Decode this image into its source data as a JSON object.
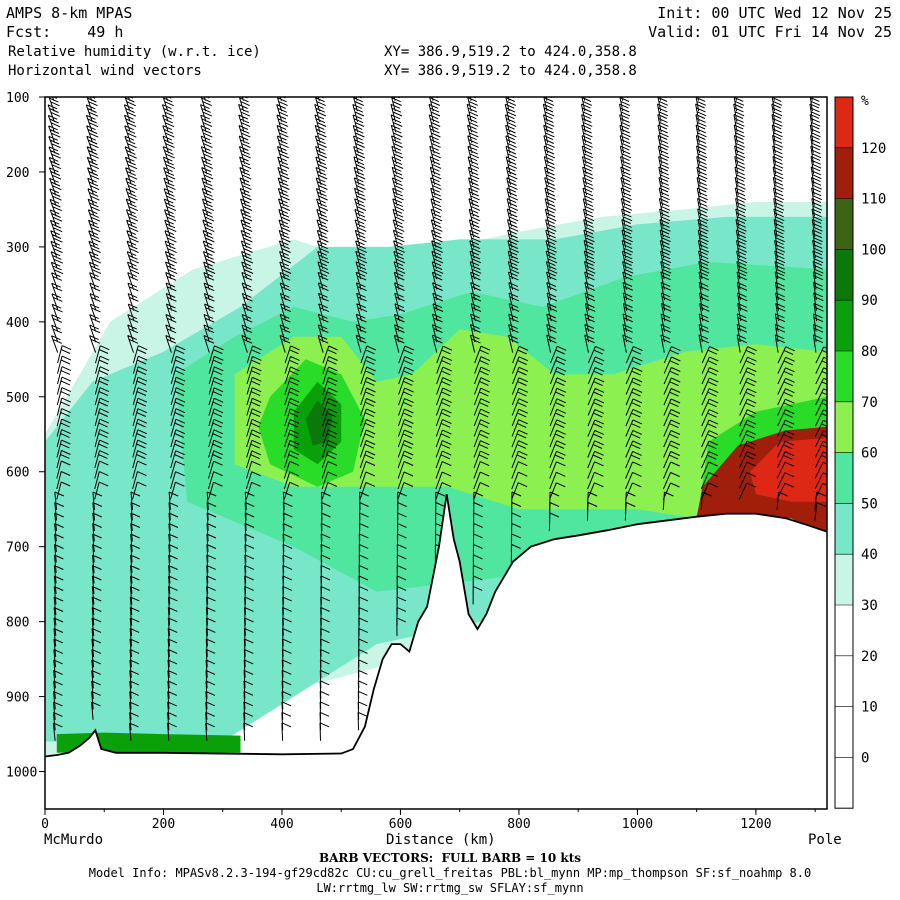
{
  "header": {
    "model": "AMPS 8-km MPAS",
    "fcst": "Fcst:    49 h",
    "var1": "Relative humidity (w.r.t. ice)",
    "var2": "Horizontal wind vectors",
    "xy1": "XY= 386.9,519.2 to 424.0,358.8",
    "xy2": "XY= 386.9,519.2 to 424.0,358.8",
    "init": "Init: 00 UTC Wed 12 Nov 25",
    "valid": "Valid: 01 UTC Fri 14 Nov 25"
  },
  "footer": {
    "barb": "BARB VECTORS:  FULL BARB = 10 kts",
    "model_info": "Model Info: MPASv8.2.3-194-gf29cd82c CU:cu_grell_freitas PBL:bl_mynn MP:mp_thompson SF:sf_noahmp 8.0",
    "model_info2": "LW:rrtmg_lw SW:rrtmg_sw SFLAY:sf_mynn"
  },
  "chart_data": {
    "type": "heatmap",
    "title": "Relative humidity (w.r.t. ice)",
    "xlabel": "Distance (km)",
    "x_start_label": "McMurdo",
    "x_end_label": "Pole",
    "xlim": [
      0,
      1320
    ],
    "ylim": [
      1050,
      100
    ],
    "x_ticks": [
      0,
      200,
      400,
      600,
      800,
      1000,
      1200
    ],
    "y_ticks": [
      100,
      200,
      300,
      400,
      500,
      600,
      700,
      800,
      900,
      1000
    ],
    "y_tick_labels": [
      "100",
      "200",
      "300",
      "400",
      "500",
      "600",
      "700",
      "800",
      "900",
      "1000"
    ],
    "colorbar": {
      "unit": "%",
      "tick_labels": [
        "0",
        "10",
        "20",
        "30",
        "40",
        "50",
        "60",
        "70",
        "80",
        "90",
        "100",
        "110",
        "120"
      ],
      "levels": [
        -10,
        0,
        10,
        20,
        30,
        40,
        50,
        60,
        70,
        80,
        90,
        100,
        110,
        120,
        130
      ],
      "colors": [
        "#ffffff",
        "#ffffff",
        "#ffffff",
        "#ffffff",
        "#c8f5e6",
        "#78e6c8",
        "#50e6a0",
        "#8cf050",
        "#28dc28",
        "#0aa00a",
        "#0a780a",
        "#3c6414",
        "#a01e0a",
        "#dc2814"
      ]
    },
    "terrain": [
      [
        0,
        980
      ],
      [
        20,
        978
      ],
      [
        40,
        975
      ],
      [
        60,
        965
      ],
      [
        75,
        955
      ],
      [
        85,
        945
      ],
      [
        95,
        970
      ],
      [
        120,
        975
      ],
      [
        200,
        975
      ],
      [
        300,
        976
      ],
      [
        400,
        977
      ],
      [
        500,
        976
      ],
      [
        520,
        970
      ],
      [
        540,
        940
      ],
      [
        555,
        890
      ],
      [
        570,
        850
      ],
      [
        585,
        830
      ],
      [
        600,
        830
      ],
      [
        615,
        840
      ],
      [
        630,
        800
      ],
      [
        645,
        780
      ],
      [
        655,
        740
      ],
      [
        665,
        700
      ],
      [
        678,
        630
      ],
      [
        690,
        690
      ],
      [
        700,
        720
      ],
      [
        715,
        790
      ],
      [
        730,
        810
      ],
      [
        745,
        790
      ],
      [
        760,
        760
      ],
      [
        775,
        740
      ],
      [
        790,
        720
      ],
      [
        820,
        700
      ],
      [
        860,
        690
      ],
      [
        900,
        685
      ],
      [
        950,
        678
      ],
      [
        1000,
        670
      ],
      [
        1050,
        665
      ],
      [
        1100,
        660
      ],
      [
        1150,
        656
      ],
      [
        1200,
        656
      ],
      [
        1250,
        662
      ],
      [
        1290,
        672
      ],
      [
        1320,
        680
      ]
    ],
    "rh_regions": [
      {
        "level": 30,
        "polygon": [
          [
            0,
            550
          ],
          [
            110,
            400
          ],
          [
            250,
            330
          ],
          [
            420,
            290
          ],
          [
            540,
            320
          ],
          [
            680,
            300
          ],
          [
            800,
            280
          ],
          [
            940,
            260
          ],
          [
            1080,
            250
          ],
          [
            1200,
            240
          ],
          [
            1320,
            240
          ],
          [
            1320,
            700
          ],
          [
            0,
            980
          ]
        ]
      },
      {
        "level": 40,
        "polygon": [
          [
            0,
            560
          ],
          [
            80,
            480
          ],
          [
            200,
            440
          ],
          [
            330,
            380
          ],
          [
            460,
            300
          ],
          [
            580,
            300
          ],
          [
            700,
            290
          ],
          [
            860,
            290
          ],
          [
            1000,
            270
          ],
          [
            1150,
            260
          ],
          [
            1320,
            260
          ],
          [
            1320,
            700
          ],
          [
            560,
            830
          ],
          [
            300,
            960
          ],
          [
            0,
            960
          ]
        ]
      },
      {
        "level": 50,
        "polygon": [
          [
            220,
            470
          ],
          [
            320,
            420
          ],
          [
            420,
            380
          ],
          [
            520,
            400
          ],
          [
            600,
            390
          ],
          [
            720,
            360
          ],
          [
            840,
            380
          ],
          [
            980,
            340
          ],
          [
            1120,
            320
          ],
          [
            1320,
            330
          ],
          [
            1320,
            690
          ],
          [
            560,
            760
          ],
          [
            420,
            700
          ],
          [
            240,
            640
          ]
        ]
      },
      {
        "level": 60,
        "polygon": [
          [
            320,
            470
          ],
          [
            420,
            420
          ],
          [
            500,
            420
          ],
          [
            560,
            480
          ],
          [
            620,
            470
          ],
          [
            700,
            410
          ],
          [
            780,
            420
          ],
          [
            860,
            470
          ],
          [
            960,
            470
          ],
          [
            1080,
            440
          ],
          [
            1200,
            430
          ],
          [
            1320,
            440
          ],
          [
            1320,
            690
          ],
          [
            1000,
            650
          ],
          [
            800,
            650
          ],
          [
            680,
            620
          ],
          [
            560,
            620
          ],
          [
            420,
            620
          ],
          [
            320,
            590
          ]
        ]
      },
      {
        "level": 70,
        "polygon": [
          [
            380,
            500
          ],
          [
            440,
            450
          ],
          [
            500,
            470
          ],
          [
            540,
            530
          ],
          [
            520,
            600
          ],
          [
            460,
            620
          ],
          [
            380,
            590
          ],
          [
            360,
            540
          ]
        ]
      },
      {
        "level": 70,
        "polygon": [
          [
            1120,
            560
          ],
          [
            1200,
            520
          ],
          [
            1320,
            500
          ],
          [
            1320,
            690
          ],
          [
            1100,
            670
          ]
        ]
      },
      {
        "level": 80,
        "polygon": [
          [
            420,
            520
          ],
          [
            460,
            480
          ],
          [
            500,
            510
          ],
          [
            500,
            560
          ],
          [
            460,
            590
          ],
          [
            420,
            570
          ]
        ]
      },
      {
        "level": 80,
        "polygon": [
          [
            20,
            950
          ],
          [
            100,
            948
          ],
          [
            200,
            950
          ],
          [
            330,
            952
          ],
          [
            330,
            975
          ],
          [
            20,
            975
          ]
        ]
      },
      {
        "level": 90,
        "polygon": [
          [
            440,
            530
          ],
          [
            460,
            505
          ],
          [
            485,
            525
          ],
          [
            478,
            560
          ],
          [
            452,
            565
          ]
        ]
      },
      {
        "level": 110,
        "polygon": [
          [
            1110,
            620
          ],
          [
            1170,
            565
          ],
          [
            1250,
            545
          ],
          [
            1320,
            540
          ],
          [
            1320,
            690
          ],
          [
            1260,
            662
          ],
          [
            1150,
            656
          ],
          [
            1100,
            660
          ]
        ]
      },
      {
        "level": 120,
        "polygon": [
          [
            1190,
            600
          ],
          [
            1240,
            560
          ],
          [
            1320,
            555
          ],
          [
            1320,
            640
          ],
          [
            1260,
            640
          ],
          [
            1200,
            630
          ]
        ]
      }
    ]
  }
}
